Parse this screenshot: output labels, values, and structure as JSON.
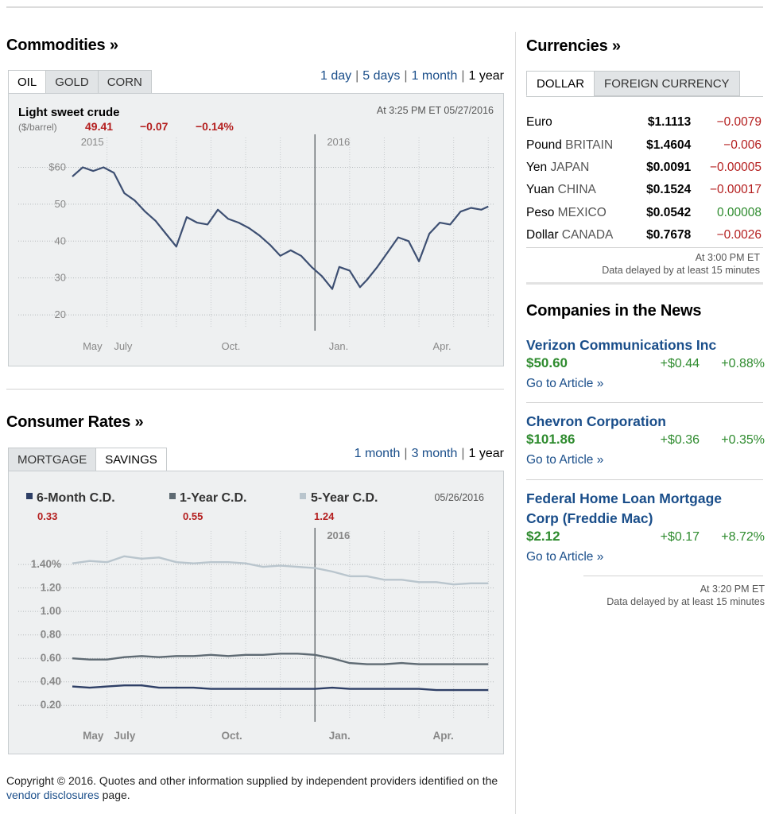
{
  "commodities": {
    "title": "Commodities »",
    "tabs": [
      "OIL",
      "GOLD",
      "CORN"
    ],
    "ranges": [
      "1 day",
      "5 days",
      "1 month",
      "1 year"
    ],
    "chart": {
      "name": "Light sweet crude",
      "unit": "($/barrel)",
      "price": "49.41",
      "change": "−0.07",
      "pct": "−0.14%",
      "timestamp": "At 3:25 PM ET 05/27/2016"
    }
  },
  "consumer": {
    "title": "Consumer Rates »",
    "tabs": [
      "MORTGAGE",
      "SAVINGS"
    ],
    "ranges": [
      "1 month",
      "3 month",
      "1 year"
    ],
    "chart": {
      "date": "05/26/2016",
      "legend": [
        {
          "name": "6-Month C.D.",
          "value": "0.33"
        },
        {
          "name": "1-Year C.D.",
          "value": "0.55"
        },
        {
          "name": "5-Year C.D.",
          "value": "1.24"
        }
      ]
    }
  },
  "currencies": {
    "title": "Currencies »",
    "tabs": [
      "DOLLAR",
      "FOREIGN CURRENCY"
    ],
    "rows": [
      {
        "name": "Euro",
        "country": "",
        "price": "$1.1113",
        "change": "−0.0079",
        "dir": "neg"
      },
      {
        "name": "Pound",
        "country": "BRITAIN",
        "price": "$1.4604",
        "change": "−0.006",
        "dir": "neg"
      },
      {
        "name": "Yen",
        "country": "JAPAN",
        "price": "$0.0091",
        "change": "−0.00005",
        "dir": "neg"
      },
      {
        "name": "Yuan",
        "country": "CHINA",
        "price": "$0.1524",
        "change": "−0.00017",
        "dir": "neg"
      },
      {
        "name": "Peso",
        "country": "MEXICO",
        "price": "$0.0542",
        "change": "0.00008",
        "dir": "pos"
      },
      {
        "name": "Dollar",
        "country": "CANADA",
        "price": "$0.7678",
        "change": "−0.0026",
        "dir": "neg"
      }
    ],
    "stamp_time": "At 3:00 PM ET",
    "stamp_note": "Data delayed by at least 15 minutes"
  },
  "news": {
    "title": "Companies in the News",
    "companies": [
      {
        "name": "Verizon Communications Inc",
        "price": "$50.60",
        "change": "+$0.44",
        "pct": "+0.88%",
        "link": "Go to Article »"
      },
      {
        "name": "Chevron Corporation",
        "price": "$101.86",
        "change": "+$0.36",
        "pct": "+0.35%",
        "link": "Go to Article »"
      },
      {
        "name": "Federal Home Loan Mortgage Corp (Freddie Mac)",
        "price": "$2.12",
        "change": "+$0.17",
        "pct": "+8.72%",
        "link": "Go to Article »"
      }
    ],
    "stamp_time": "At 3:20 PM ET",
    "stamp_note": "Data delayed by at least 15 minutes"
  },
  "footer": {
    "text1": "Copyright © 2016. Quotes and other information supplied by independent providers identified on the ",
    "link": "vendor disclosures",
    "text2": " page."
  },
  "colors": {
    "link": "#1a4e8a",
    "negative": "#b41e1e",
    "positive": "#2e8b2e",
    "series_oil": "#3d4f72",
    "series_6m": "#2e3f66",
    "series_1y": "#5e6a73",
    "series_5y": "#b9c5cd"
  },
  "chart_data": [
    {
      "type": "line",
      "title": "Light sweet crude",
      "ylabel": "($/barrel)",
      "ylim": [
        17,
        67
      ],
      "y_ticks": [
        "$60",
        "50",
        "40",
        "30",
        "20"
      ],
      "y_tick_values": [
        60,
        50,
        40,
        30,
        20
      ],
      "x_labels": [
        "May",
        "July",
        "Oct.",
        "Jan.",
        "Apr."
      ],
      "x_label_months": [
        0.3,
        1.2,
        4.3,
        7.4,
        10.4
      ],
      "year_labels": [
        "2015",
        "2016"
      ],
      "year_label_months": [
        0.2,
        7.3
      ],
      "divider_month": 7.0,
      "x_range_months": [
        0,
        12.2
      ],
      "grid": true,
      "series": [
        {
          "x": [
            0.0,
            0.3,
            0.6,
            0.9,
            1.2,
            1.5,
            1.8,
            2.1,
            2.4,
            2.7,
            3.0,
            3.3,
            3.6,
            3.9,
            4.2,
            4.5,
            4.8,
            5.1,
            5.4,
            5.7,
            6.0,
            6.3,
            6.6,
            6.9,
            7.2,
            7.5,
            7.7,
            8.0,
            8.3,
            8.5,
            8.8,
            9.1,
            9.4,
            9.7,
            10.0,
            10.3,
            10.6,
            10.9,
            11.2,
            11.5,
            11.8,
            12.0
          ],
          "y": [
            57.5,
            60.0,
            59.0,
            60.0,
            58.5,
            53.0,
            51.0,
            48.0,
            45.5,
            42.0,
            38.5,
            46.5,
            45.0,
            44.5,
            48.5,
            46.0,
            45.0,
            43.5,
            41.5,
            39.0,
            36.0,
            37.5,
            36.0,
            33.0,
            30.5,
            27.0,
            33.0,
            32.0,
            27.5,
            29.5,
            33.0,
            37.0,
            41.0,
            40.0,
            34.5,
            42.0,
            45.0,
            44.5,
            48.0,
            49.0,
            48.5,
            49.4
          ]
        }
      ]
    },
    {
      "type": "line",
      "ylim": [
        0.1,
        1.55
      ],
      "y_ticks": [
        "1.40%",
        "1.20",
        "1.00",
        "0.80",
        "0.60",
        "0.40",
        "0.20"
      ],
      "y_tick_values": [
        1.4,
        1.2,
        1.0,
        0.8,
        0.6,
        0.4,
        0.2
      ],
      "x_labels": [
        "May",
        "July",
        "Oct.",
        "Jan.",
        "Apr."
      ],
      "x_label_months": [
        0.3,
        1.2,
        4.3,
        7.4,
        10.4
      ],
      "year_labels": [
        "2016"
      ],
      "year_label_months": [
        7.3
      ],
      "divider_month": 7.0,
      "x_range_months": [
        0,
        12.2
      ],
      "grid": true,
      "series": [
        {
          "name": "5-Year C.D.",
          "x": [
            0,
            0.5,
            1.0,
            1.5,
            2.0,
            2.5,
            3.0,
            3.5,
            4.0,
            4.5,
            5.0,
            5.5,
            6.0,
            6.5,
            7.0,
            7.5,
            8.0,
            8.5,
            9.0,
            9.5,
            10.0,
            10.5,
            11.0,
            11.5,
            12.0
          ],
          "y": [
            1.41,
            1.43,
            1.42,
            1.47,
            1.45,
            1.46,
            1.42,
            1.41,
            1.42,
            1.42,
            1.41,
            1.38,
            1.39,
            1.38,
            1.37,
            1.34,
            1.3,
            1.3,
            1.27,
            1.27,
            1.25,
            1.25,
            1.23,
            1.24,
            1.24
          ]
        },
        {
          "name": "1-Year C.D.",
          "x": [
            0,
            0.5,
            1.0,
            1.5,
            2.0,
            2.5,
            3.0,
            3.5,
            4.0,
            4.5,
            5.0,
            5.5,
            6.0,
            6.5,
            7.0,
            7.5,
            8.0,
            8.5,
            9.0,
            9.5,
            10.0,
            10.5,
            11.0,
            11.5,
            12.0
          ],
          "y": [
            0.6,
            0.59,
            0.59,
            0.61,
            0.62,
            0.61,
            0.62,
            0.62,
            0.63,
            0.62,
            0.63,
            0.63,
            0.64,
            0.64,
            0.63,
            0.6,
            0.56,
            0.55,
            0.55,
            0.56,
            0.55,
            0.55,
            0.55,
            0.55,
            0.55
          ]
        },
        {
          "name": "6-Month C.D.",
          "x": [
            0,
            0.5,
            1.0,
            1.5,
            2.0,
            2.5,
            3.0,
            3.5,
            4.0,
            4.5,
            5.0,
            5.5,
            6.0,
            6.5,
            7.0,
            7.5,
            8.0,
            8.5,
            9.0,
            9.5,
            10.0,
            10.5,
            11.0,
            11.5,
            12.0
          ],
          "y": [
            0.36,
            0.35,
            0.36,
            0.37,
            0.37,
            0.35,
            0.35,
            0.35,
            0.34,
            0.34,
            0.34,
            0.34,
            0.34,
            0.34,
            0.34,
            0.35,
            0.34,
            0.34,
            0.34,
            0.34,
            0.34,
            0.33,
            0.33,
            0.33,
            0.33
          ]
        }
      ]
    }
  ]
}
